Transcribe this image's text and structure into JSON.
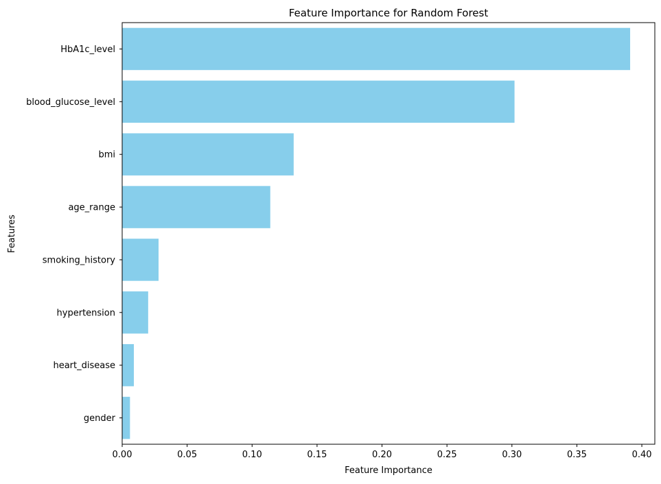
{
  "chart_data": {
    "type": "bar",
    "orientation": "horizontal",
    "title": "Feature Importance for Random Forest",
    "xlabel": "Feature Importance",
    "ylabel": "Features",
    "categories": [
      "HbA1c_level",
      "blood_glucose_level",
      "bmi",
      "age_range",
      "smoking_history",
      "hypertension",
      "heart_disease",
      "gender"
    ],
    "values": [
      0.391,
      0.302,
      0.132,
      0.114,
      0.028,
      0.02,
      0.009,
      0.006
    ],
    "xlim": [
      0,
      0.41
    ],
    "xticks": [
      0.0,
      0.05,
      0.1,
      0.15,
      0.2,
      0.25,
      0.3,
      0.35,
      0.4
    ],
    "xtick_labels": [
      "0.00",
      "0.05",
      "0.10",
      "0.15",
      "0.20",
      "0.25",
      "0.30",
      "0.35",
      "0.40"
    ],
    "bar_color": "#87CEEB",
    "grid": false,
    "legend": "none"
  }
}
